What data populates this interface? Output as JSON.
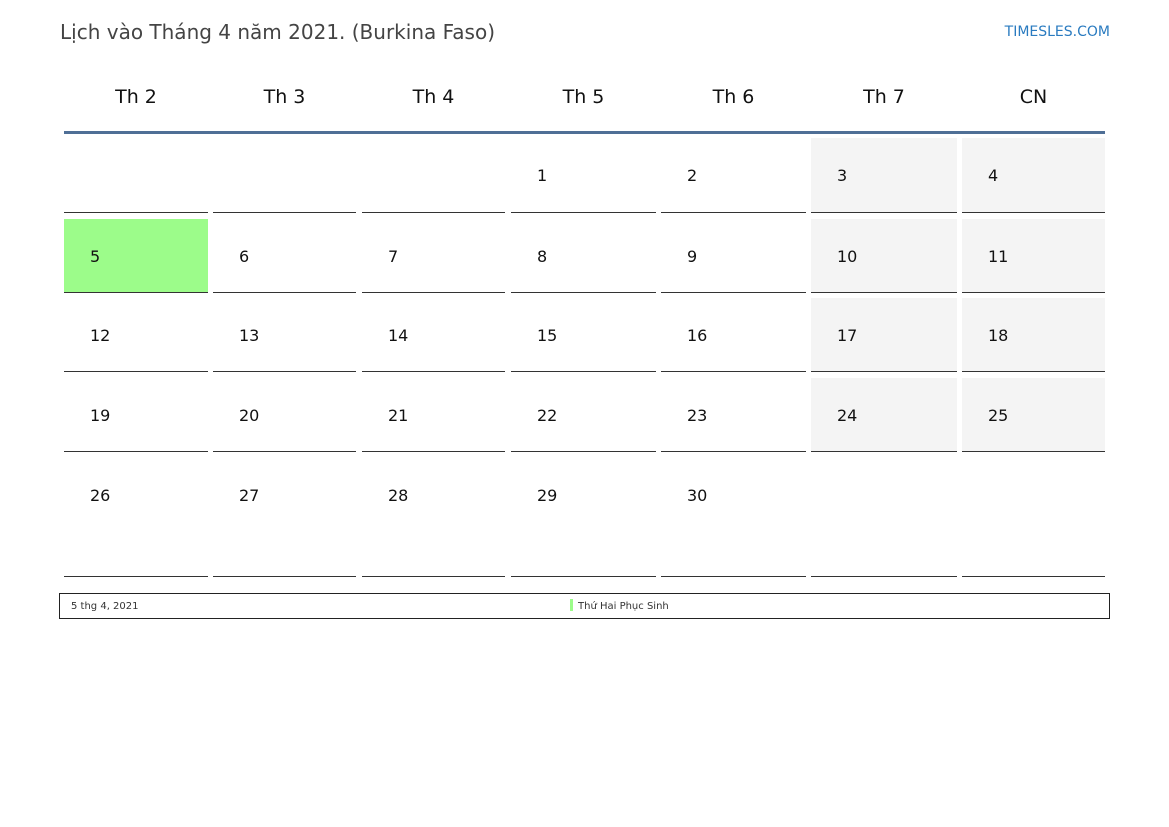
{
  "title": "Lịch vào Tháng 4 năm 2021. (Burkina Faso)",
  "site": "TIMESLES.COM",
  "weekdays": [
    "Th 2",
    "Th 3",
    "Th 4",
    "Th 5",
    "Th 6",
    "Th 7",
    "CN"
  ],
  "weeks": [
    [
      "",
      "",
      "",
      "1",
      "2",
      "3",
      "4"
    ],
    [
      "5",
      "6",
      "7",
      "8",
      "9",
      "10",
      "11"
    ],
    [
      "12",
      "13",
      "14",
      "15",
      "16",
      "17",
      "18"
    ],
    [
      "19",
      "20",
      "21",
      "22",
      "23",
      "24",
      "25"
    ],
    [
      "26",
      "27",
      "28",
      "29",
      "30",
      "",
      ""
    ]
  ],
  "holidays": [
    "5"
  ],
  "colors": {
    "holiday": "#9cfc8a",
    "weekend": "#f4f4f4",
    "header_line": "#4f6f96",
    "link": "#2a7bc0"
  },
  "legend": {
    "date": "5 thg 4, 2021",
    "name": "Thứ Hai Phục Sinh"
  }
}
